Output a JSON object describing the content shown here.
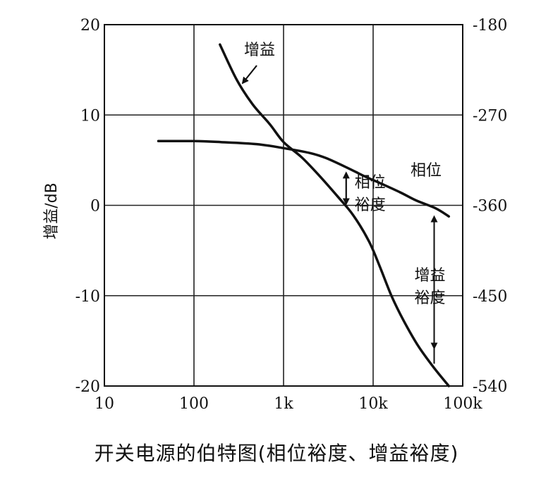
{
  "chart_data": {
    "type": "line",
    "x_scale": "log",
    "x_ticks": [
      "10",
      "100",
      "1k",
      "10k",
      "100k"
    ],
    "x_tick_values": [
      10,
      100,
      1000,
      10000,
      100000
    ],
    "xlim": [
      10,
      100000
    ],
    "ylabel": "增益/dB",
    "y_ticks": [
      "20",
      "10",
      "0",
      "-10",
      "-20"
    ],
    "ylim": [
      -20,
      20
    ],
    "y2_ticks": [
      "-180",
      "-270",
      "-360",
      "-450",
      "-540"
    ],
    "y2lim": [
      -540,
      -180
    ],
    "grid": true,
    "series": [
      {
        "name": "增益",
        "axis": "left",
        "x": [
          195,
          300,
          450,
          700,
          1000,
          1600,
          2500,
          4000,
          6000,
          9000,
          12000,
          16000,
          22000,
          32000,
          48000,
          70000
        ],
        "y": [
          17.8,
          13.9,
          11.2,
          9.0,
          7.0,
          5.3,
          3.3,
          1.0,
          -1.1,
          -4.0,
          -6.9,
          -10.0,
          -12.8,
          -15.6,
          -18.0,
          -20.0
        ]
      },
      {
        "name": "相位",
        "axis": "right",
        "x": [
          40,
          100,
          200,
          500,
          1000,
          2000,
          3000,
          5000,
          8000,
          12000,
          20000,
          30000,
          50000,
          70000
        ],
        "y": [
          -296,
          -296,
          -297,
          -299,
          -303,
          -308,
          -313,
          -322,
          -331,
          -338,
          -347,
          -355,
          -363,
          -371
        ]
      }
    ],
    "annotations": {
      "gain_label": "增益",
      "phase_label": "相位",
      "phase_margin_line1": "相位",
      "phase_margin_line2": "裕度",
      "gain_margin_line1": "增益",
      "gain_margin_line2": "裕度",
      "phase_margin_x": 5000,
      "gain_margin_x": 48000
    }
  },
  "caption": "开关电源的伯特图(相位裕度、增益裕度)"
}
